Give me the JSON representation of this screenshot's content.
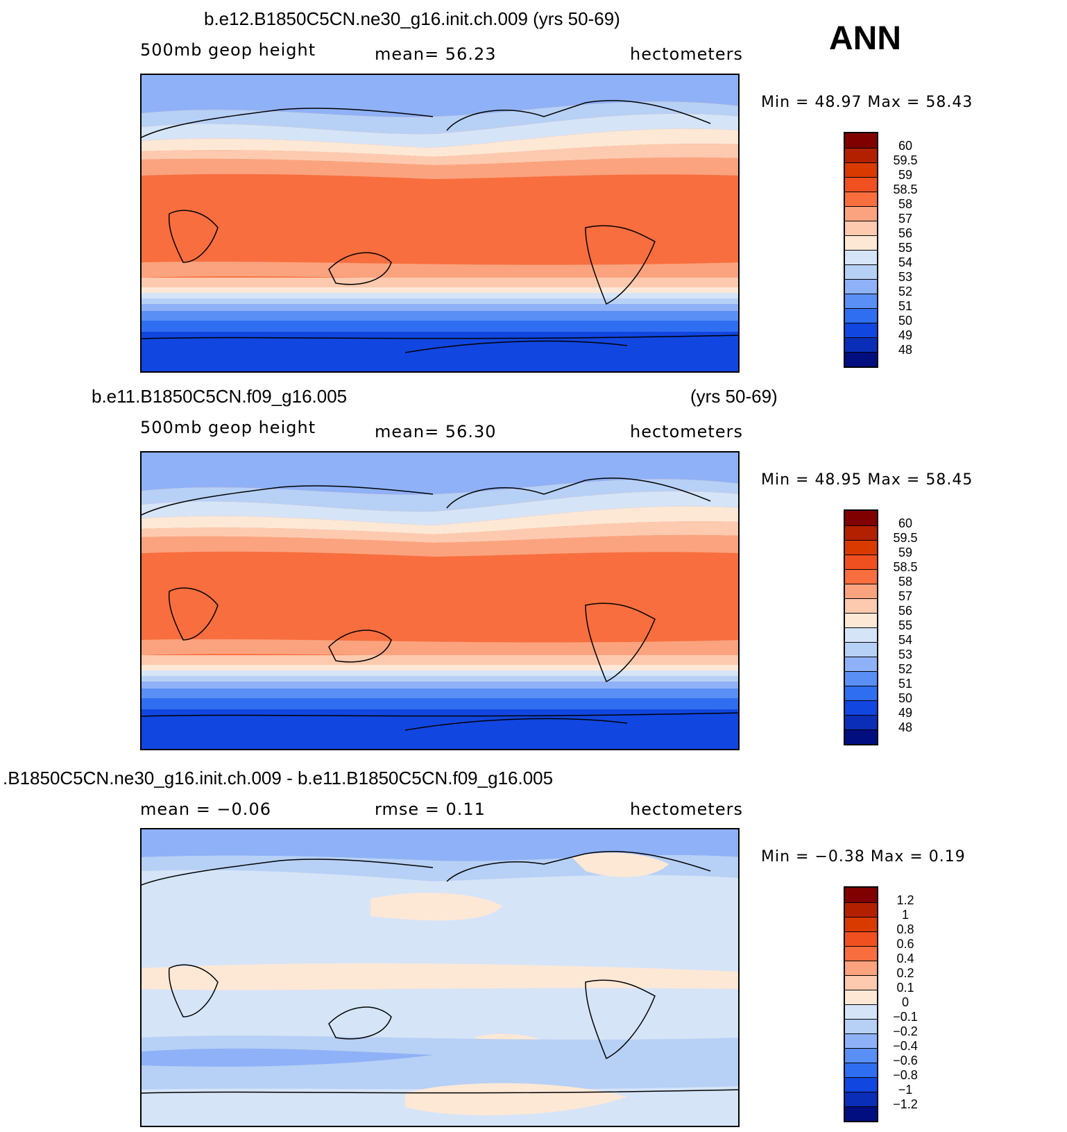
{
  "season": "ANN",
  "panels": [
    {
      "title_left": "b.e12.B1850C5CN.ne30_g16.init.ch.009 (yrs 50-69)",
      "title_right": "",
      "left_label": "500mb  geop  height",
      "center_label": "mean=   56.23",
      "units": "hectometers",
      "minmax": "Min =   48.97  Max =   58.43",
      "colorbar_labels": [
        "60",
        "59.5",
        "59",
        "58.5",
        "58",
        "57",
        "56",
        "55",
        "54",
        "53",
        "52",
        "51",
        "50",
        "49",
        "48"
      ],
      "colors": [
        "#800000",
        "#b22000",
        "#d93a00",
        "#f05020",
        "#f96e3e",
        "#fba37f",
        "#fdcaaf",
        "#fde8d6",
        "#d6e4f7",
        "#b7d0f5",
        "#8fb1f7",
        "#5a8ff5",
        "#2f6ef0",
        "#1146e0",
        "#0a2eb8",
        "#000e80"
      ]
    },
    {
      "title_left": "b.e11.B1850C5CN.f09_g16.005",
      "title_right": "(yrs 50-69)",
      "left_label": "500mb  geop  height",
      "center_label": "mean=   56.30",
      "units": "hectometers",
      "minmax": "Min =   48.95  Max =   58.45",
      "colorbar_labels": [
        "60",
        "59.5",
        "59",
        "58.5",
        "58",
        "57",
        "56",
        "55",
        "54",
        "53",
        "52",
        "51",
        "50",
        "49",
        "48"
      ],
      "colors": [
        "#800000",
        "#b22000",
        "#d93a00",
        "#f05020",
        "#f96e3e",
        "#fba37f",
        "#fdcaaf",
        "#fde8d6",
        "#d6e4f7",
        "#b7d0f5",
        "#8fb1f7",
        "#5a8ff5",
        "#2f6ef0",
        "#1146e0",
        "#0a2eb8",
        "#000e80"
      ]
    },
    {
      "title_left": ".B1850C5CN.ne30_g16.init.ch.009 - b.e11.B1850C5CN.f09_g16.005",
      "title_right": "",
      "left_label": "mean =   −0.06",
      "center_label": "rmse =    0.11",
      "units": "hectometers",
      "minmax": "Min =   −0.38  Max =    0.19",
      "colorbar_labels": [
        "1.2",
        "1",
        "0.8",
        "0.6",
        "0.4",
        "0.2",
        "0.1",
        "0",
        "−0.1",
        "−0.2",
        "−0.4",
        "−0.6",
        "−0.8",
        "−1",
        "−1.2"
      ],
      "colors": [
        "#800000",
        "#b22000",
        "#d93a00",
        "#f05020",
        "#f96e3e",
        "#fba37f",
        "#fdcaaf",
        "#fde8d6",
        "#d6e4f7",
        "#b7d0f5",
        "#8fb1f7",
        "#5a8ff5",
        "#2f6ef0",
        "#1146e0",
        "#0a2eb8",
        "#000e80"
      ]
    }
  ]
}
